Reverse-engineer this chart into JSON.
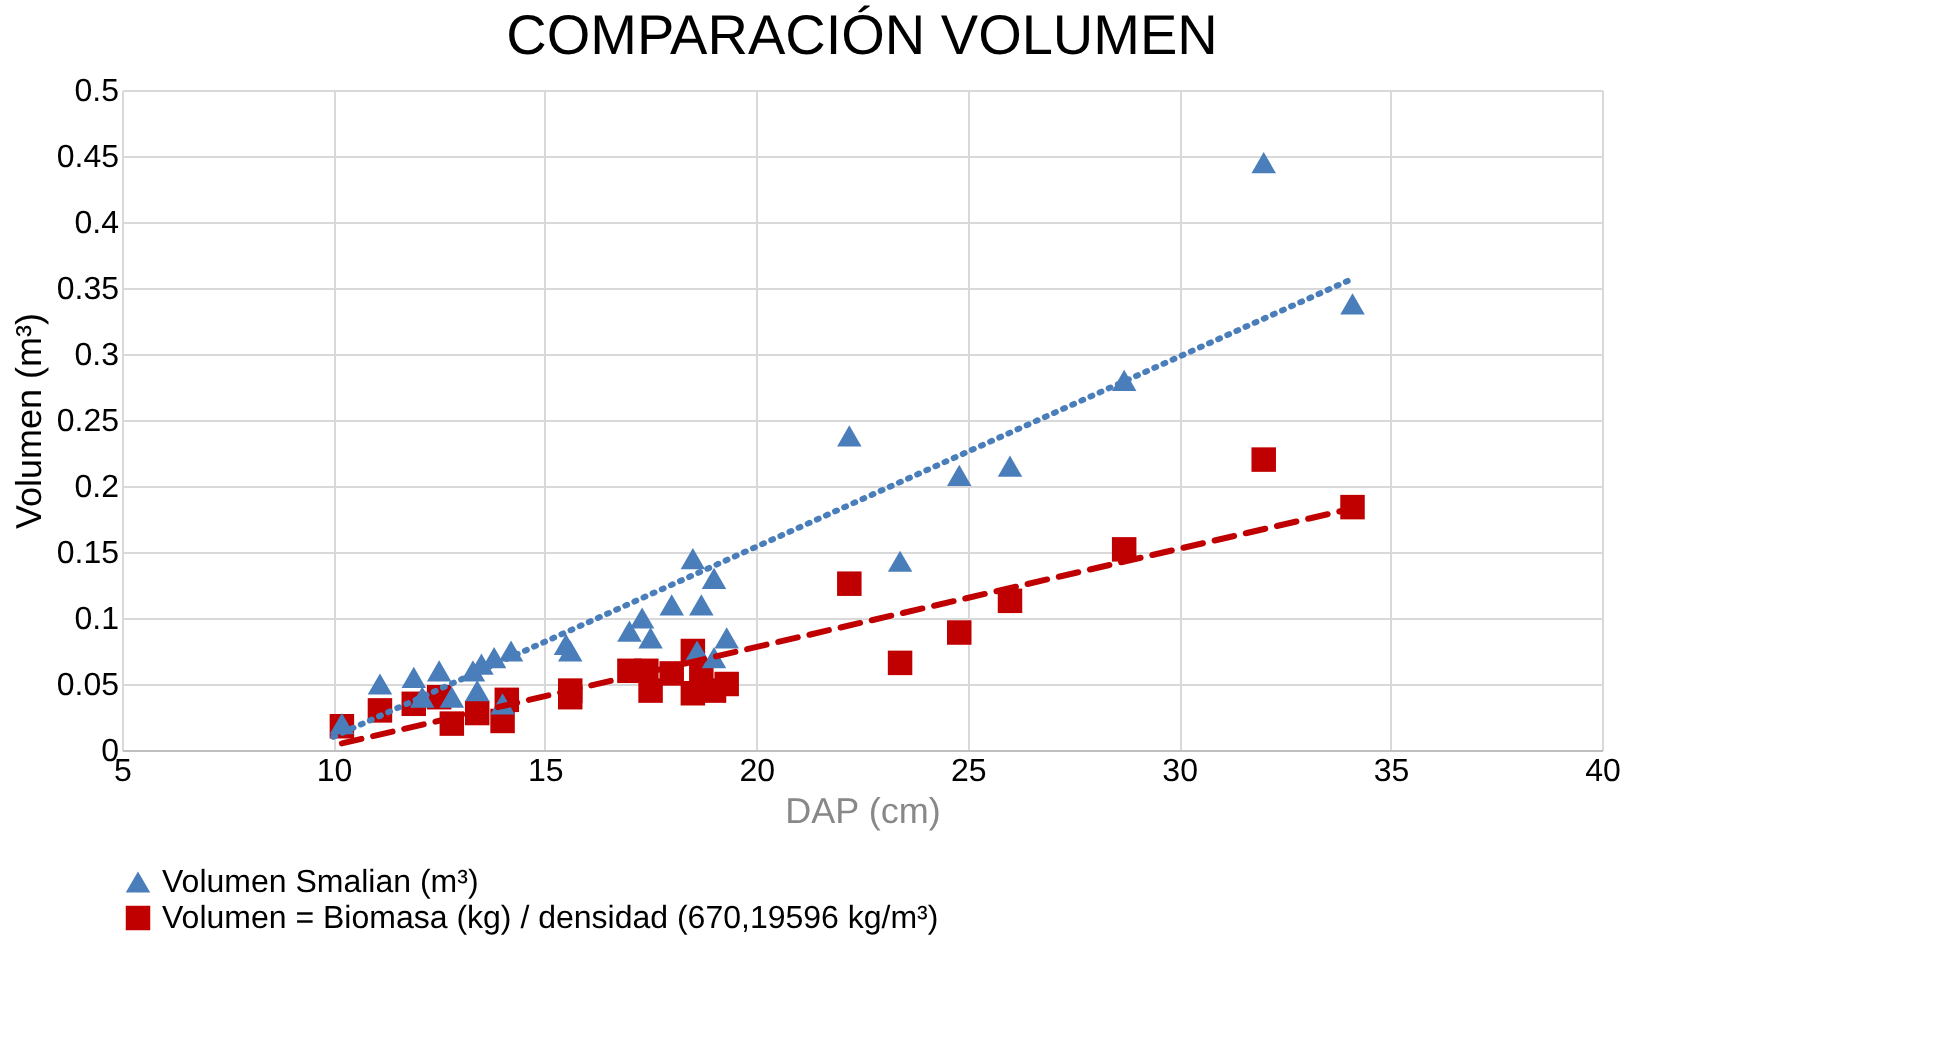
{
  "chart_data": {
    "type": "scatter",
    "title": "COMPARACIÓN VOLUMEN",
    "xlabel": "DAP (cm)",
    "ylabel": "Volumen (m³)",
    "xlim": [
      5,
      40
    ],
    "xticks": [
      5,
      10,
      15,
      20,
      25,
      30,
      35,
      40
    ],
    "ylim": [
      0,
      0.5
    ],
    "yticks": [
      0,
      0.05,
      0.1,
      0.15,
      0.2,
      0.25,
      0.3,
      0.35,
      0.4,
      0.45,
      0.5
    ],
    "grid": true,
    "legend": "bottom",
    "series": [
      {
        "name": "Volumen Smalian (m³)",
        "marker": "triangle",
        "color": "#4a7ebb",
        "x": [
          10.2,
          11.1,
          11.9,
          12.5,
          12.1,
          12.8,
          13.3,
          13.5,
          13.8,
          14.2,
          13.4,
          14.0,
          15.5,
          15.6,
          17.0,
          17.3,
          17.5,
          18.0,
          18.5,
          18.7,
          19.0,
          19.3,
          18.6,
          19.0,
          22.2,
          23.4,
          24.8,
          26.0,
          28.7,
          32.0,
          34.1
        ],
        "values": [
          0.02,
          0.05,
          0.055,
          0.06,
          0.04,
          0.04,
          0.06,
          0.065,
          0.07,
          0.075,
          0.045,
          0.035,
          0.08,
          0.075,
          0.09,
          0.1,
          0.085,
          0.11,
          0.145,
          0.11,
          0.13,
          0.085,
          0.075,
          0.07,
          0.238,
          0.143,
          0.208,
          0.215,
          0.28,
          0.445,
          0.338
        ]
      },
      {
        "name": "Volumen = Biomasa (kg) / densidad (670,19596 kg/m³)",
        "marker": "square",
        "color": "#c00000",
        "x": [
          10.2,
          11.1,
          11.9,
          12.5,
          12.8,
          13.4,
          14.0,
          14.1,
          15.6,
          15.6,
          17.0,
          17.4,
          17.5,
          18.0,
          18.5,
          18.5,
          18.7,
          19.0,
          19.3,
          22.2,
          23.4,
          24.8,
          26.0,
          28.7,
          32.0,
          34.1
        ],
        "values": [
          0.018,
          0.03,
          0.035,
          0.04,
          0.02,
          0.028,
          0.022,
          0.038,
          0.045,
          0.04,
          0.06,
          0.06,
          0.045,
          0.058,
          0.075,
          0.043,
          0.058,
          0.045,
          0.05,
          0.126,
          0.066,
          0.089,
          0.113,
          0.152,
          0.22,
          0.184
        ]
      },
      {
        "type": "line",
        "line_style": "dotted",
        "marker": "none",
        "color": "#4a7ebb",
        "x": [
          10.0,
          34.1
        ],
        "values": [
          0.01,
          0.357
        ]
      },
      {
        "type": "line",
        "line_style": "dashed",
        "marker": "none",
        "color": "#c00000",
        "x": [
          10.2,
          34.1
        ],
        "values": [
          0.005,
          0.183
        ]
      }
    ]
  }
}
